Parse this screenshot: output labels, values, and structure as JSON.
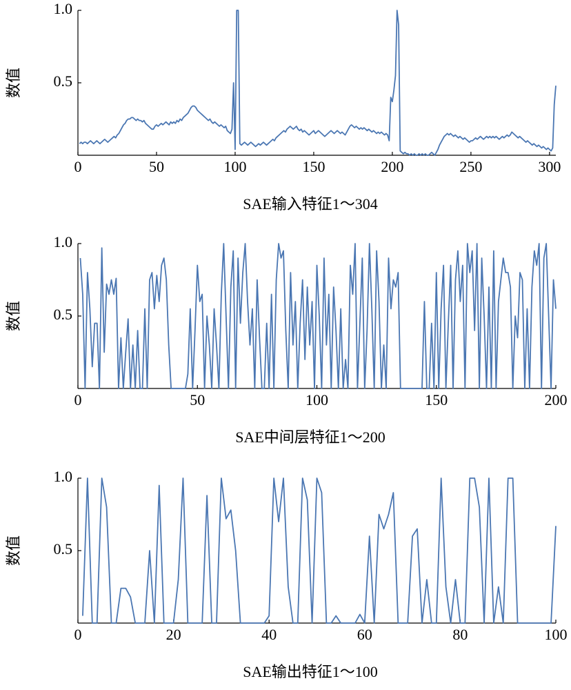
{
  "chart_data": [
    {
      "type": "line",
      "xlabel": "SAE输入特征1～304",
      "ylabel": "数值",
      "color": "#4a76b2",
      "xlim": [
        0,
        304
      ],
      "ylim": [
        0,
        1
      ],
      "xticks": [
        0,
        50,
        100,
        150,
        200,
        250,
        300
      ],
      "yticks": [
        0.5,
        {
          "value": 1,
          "label": "1.0"
        }
      ],
      "values": [
        0.08,
        0.09,
        0.08,
        0.09,
        0.09,
        0.08,
        0.09,
        0.1,
        0.09,
        0.08,
        0.09,
        0.1,
        0.09,
        0.08,
        0.09,
        0.1,
        0.11,
        0.1,
        0.09,
        0.1,
        0.11,
        0.12,
        0.13,
        0.12,
        0.14,
        0.15,
        0.17,
        0.19,
        0.21,
        0.22,
        0.24,
        0.25,
        0.25,
        0.26,
        0.26,
        0.25,
        0.24,
        0.25,
        0.24,
        0.24,
        0.23,
        0.24,
        0.22,
        0.21,
        0.2,
        0.19,
        0.18,
        0.18,
        0.2,
        0.21,
        0.2,
        0.21,
        0.22,
        0.21,
        0.22,
        0.23,
        0.22,
        0.21,
        0.23,
        0.22,
        0.23,
        0.22,
        0.24,
        0.23,
        0.25,
        0.24,
        0.26,
        0.27,
        0.28,
        0.29,
        0.31,
        0.33,
        0.34,
        0.34,
        0.33,
        0.31,
        0.3,
        0.29,
        0.28,
        0.27,
        0.26,
        0.25,
        0.24,
        0.25,
        0.23,
        0.22,
        0.23,
        0.22,
        0.21,
        0.2,
        0.21,
        0.2,
        0.19,
        0.2,
        0.17,
        0.16,
        0.15,
        0.18,
        0.5,
        0.04,
        1.0,
        1.0,
        0.08,
        0.07,
        0.08,
        0.09,
        0.08,
        0.07,
        0.08,
        0.09,
        0.08,
        0.07,
        0.06,
        0.07,
        0.08,
        0.07,
        0.08,
        0.09,
        0.08,
        0.07,
        0.08,
        0.09,
        0.1,
        0.11,
        0.1,
        0.12,
        0.13,
        0.14,
        0.15,
        0.16,
        0.17,
        0.16,
        0.18,
        0.19,
        0.2,
        0.19,
        0.18,
        0.19,
        0.2,
        0.18,
        0.17,
        0.18,
        0.16,
        0.17,
        0.16,
        0.15,
        0.14,
        0.15,
        0.16,
        0.17,
        0.15,
        0.16,
        0.17,
        0.16,
        0.15,
        0.14,
        0.13,
        0.14,
        0.15,
        0.16,
        0.17,
        0.16,
        0.15,
        0.16,
        0.17,
        0.16,
        0.15,
        0.16,
        0.15,
        0.14,
        0.16,
        0.18,
        0.2,
        0.21,
        0.2,
        0.19,
        0.2,
        0.19,
        0.18,
        0.19,
        0.18,
        0.19,
        0.18,
        0.17,
        0.18,
        0.17,
        0.16,
        0.17,
        0.16,
        0.15,
        0.16,
        0.15,
        0.16,
        0.15,
        0.14,
        0.15,
        0.14,
        0.1,
        0.4,
        0.37,
        0.45,
        0.55,
        1.0,
        0.9,
        0.03,
        0.02,
        0.01,
        0.02,
        0.01,
        0.01,
        0.0,
        0.01,
        0.0,
        0.01,
        0.0,
        0.0,
        0.01,
        0.0,
        0.01,
        0.0,
        0.01,
        0.0,
        0.0,
        0.01,
        0.02,
        0.01,
        0.0,
        0.02,
        0.04,
        0.07,
        0.09,
        0.11,
        0.13,
        0.14,
        0.15,
        0.14,
        0.15,
        0.14,
        0.13,
        0.14,
        0.13,
        0.12,
        0.13,
        0.12,
        0.11,
        0.12,
        0.11,
        0.1,
        0.09,
        0.1,
        0.1,
        0.11,
        0.12,
        0.11,
        0.12,
        0.13,
        0.12,
        0.11,
        0.12,
        0.13,
        0.12,
        0.13,
        0.12,
        0.13,
        0.12,
        0.13,
        0.12,
        0.11,
        0.12,
        0.13,
        0.12,
        0.13,
        0.14,
        0.13,
        0.14,
        0.16,
        0.15,
        0.14,
        0.13,
        0.12,
        0.13,
        0.12,
        0.11,
        0.1,
        0.09,
        0.1,
        0.09,
        0.08,
        0.07,
        0.08,
        0.07,
        0.06,
        0.07,
        0.06,
        0.05,
        0.06,
        0.05,
        0.04,
        0.05,
        0.04,
        0.03,
        0.05,
        0.35,
        0.48
      ]
    },
    {
      "type": "line",
      "xlabel": "SAE中间层特征1～200",
      "ylabel": "数值",
      "color": "#4a76b2",
      "xlim": [
        0,
        200
      ],
      "ylim": [
        0,
        1
      ],
      "xticks": [
        0,
        50,
        100,
        150,
        200
      ],
      "yticks": [
        0.5,
        {
          "value": 1,
          "label": "1.0"
        }
      ],
      "values": [
        0.9,
        0.65,
        0.0,
        0.8,
        0.55,
        0.15,
        0.45,
        0.45,
        0.0,
        0.97,
        0.25,
        0.72,
        0.65,
        0.75,
        0.65,
        0.76,
        0.0,
        0.35,
        0.0,
        0.25,
        0.48,
        0.0,
        0.3,
        0.0,
        0.4,
        0.0,
        0.0,
        0.55,
        0.0,
        0.75,
        0.8,
        0.55,
        0.78,
        0.6,
        0.85,
        0.9,
        0.75,
        0.3,
        0.0,
        0.0,
        0.0,
        0.0,
        0.0,
        0.0,
        0.0,
        0.1,
        0.55,
        0.0,
        0.4,
        0.85,
        0.6,
        0.65,
        0.0,
        0.5,
        0.3,
        0.0,
        0.55,
        0.3,
        0.0,
        0.65,
        1.0,
        0.5,
        0.0,
        0.7,
        0.95,
        0.0,
        0.9,
        0.45,
        0.8,
        1.0,
        0.6,
        0.3,
        0.55,
        0.0,
        0.75,
        0.35,
        0.0,
        0.0,
        0.45,
        0.0,
        0.65,
        0.0,
        0.75,
        1.0,
        0.9,
        0.95,
        0.4,
        0.0,
        0.8,
        0.3,
        0.6,
        0.0,
        0.45,
        0.75,
        0.2,
        0.7,
        0.3,
        0.6,
        0.0,
        0.85,
        0.5,
        0.0,
        0.9,
        0.3,
        0.65,
        0.0,
        0.7,
        0.4,
        0.0,
        0.55,
        0.0,
        0.2,
        0.0,
        0.85,
        0.65,
        1.0,
        0.0,
        0.45,
        0.9,
        0.0,
        0.4,
        1.0,
        0.55,
        0.0,
        0.95,
        0.6,
        0.0,
        0.3,
        0.0,
        0.9,
        0.55,
        0.75,
        0.7,
        0.8,
        0.0,
        0.0,
        0.0,
        0.0,
        0.0,
        0.0,
        0.0,
        0.0,
        0.0,
        0.0,
        0.6,
        0.0,
        0.0,
        0.45,
        0.0,
        0.8,
        0.0,
        0.55,
        0.85,
        0.0,
        0.45,
        0.85,
        0.0,
        0.75,
        0.95,
        0.6,
        0.85,
        0.0,
        1.0,
        0.8,
        0.95,
        0.4,
        1.0,
        0.0,
        0.9,
        0.5,
        0.0,
        0.7,
        0.0,
        0.95,
        0.0,
        0.6,
        0.75,
        0.9,
        0.8,
        0.8,
        0.7,
        0.0,
        0.5,
        0.35,
        0.8,
        0.75,
        0.0,
        0.55,
        0.0,
        0.7,
        0.95,
        0.85,
        1.0,
        0.0,
        0.9,
        1.0,
        0.5,
        0.0,
        0.75,
        0.55
      ]
    },
    {
      "type": "line",
      "xlabel": "SAE输出特征1～100",
      "ylabel": "数值",
      "color": "#4a76b2",
      "xlim": [
        0,
        100
      ],
      "ylim": [
        0,
        1
      ],
      "xticks": [
        0,
        20,
        40,
        60,
        80,
        100
      ],
      "yticks": [
        0.5,
        {
          "value": 1,
          "label": "1.0"
        }
      ],
      "values": [
        0.05,
        1.0,
        0.0,
        0.0,
        1.0,
        0.8,
        0.0,
        0.0,
        0.24,
        0.24,
        0.18,
        0.0,
        0.0,
        0.0,
        0.5,
        0.0,
        0.95,
        0.0,
        0.0,
        0.0,
        0.3,
        1.0,
        0.0,
        0.0,
        0.0,
        0.0,
        0.88,
        0.0,
        0.0,
        1.0,
        0.72,
        0.78,
        0.5,
        0.0,
        0.0,
        0.0,
        0.0,
        0.0,
        0.0,
        0.05,
        1.0,
        0.7,
        1.0,
        0.25,
        0.0,
        0.0,
        1.0,
        0.85,
        0.0,
        1.0,
        0.9,
        0.0,
        0.0,
        0.05,
        0.0,
        0.0,
        0.0,
        0.0,
        0.06,
        0.0,
        0.6,
        0.0,
        0.75,
        0.65,
        0.75,
        0.9,
        0.0,
        0.0,
        0.0,
        0.6,
        0.65,
        0.0,
        0.3,
        0.0,
        0.0,
        1.0,
        0.25,
        0.0,
        0.3,
        0.0,
        0.0,
        1.0,
        1.0,
        0.8,
        0.0,
        1.0,
        0.0,
        0.25,
        0.0,
        1.0,
        1.0,
        0.0,
        0.0,
        0.0,
        0.0,
        0.0,
        0.0,
        0.0,
        0.0,
        0.67
      ]
    }
  ]
}
